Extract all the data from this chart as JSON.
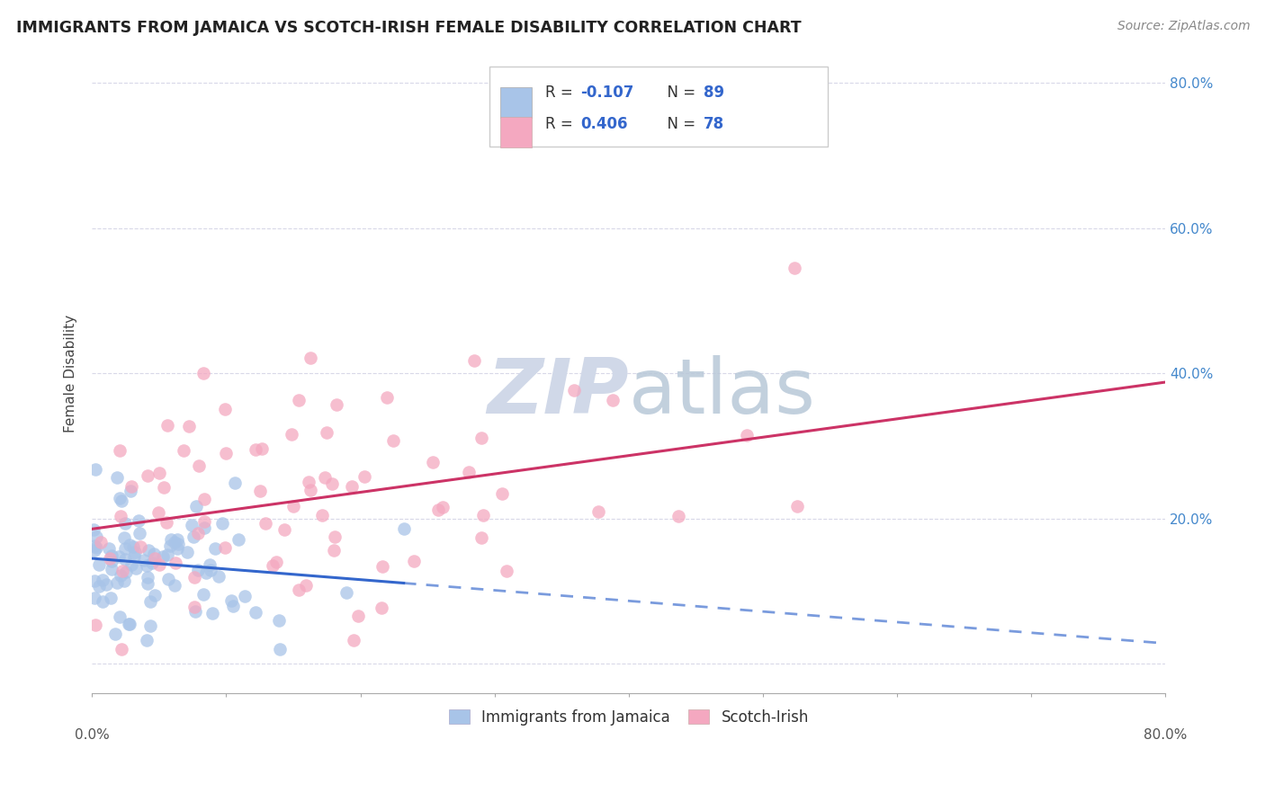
{
  "title": "IMMIGRANTS FROM JAMAICA VS SCOTCH-IRISH FEMALE DISABILITY CORRELATION CHART",
  "source": "Source: ZipAtlas.com",
  "ylabel": "Female Disability",
  "jamaica_color": "#a8c4e8",
  "scotch_color": "#f4a8c0",
  "jamaica_line_color": "#3366cc",
  "scotch_line_color": "#cc3366",
  "jamaica_R": -0.107,
  "jamaica_N": 89,
  "scotch_R": 0.406,
  "scotch_N": 78,
  "r_n_text_color": "#3366cc",
  "x_min": 0.0,
  "x_max": 0.8,
  "y_min": -0.04,
  "y_max": 0.84,
  "y_ticks": [
    0.0,
    0.2,
    0.4,
    0.6,
    0.8
  ],
  "y_tick_labels_right": [
    "",
    "20.0%",
    "40.0%",
    "60.0%",
    "80.0%"
  ],
  "watermark_color": "#d0d8e8",
  "grid_color": "#d8d8e8",
  "legend_jamaica_label": "Immigrants from Jamaica",
  "legend_scotch_label": "Scotch-Irish"
}
